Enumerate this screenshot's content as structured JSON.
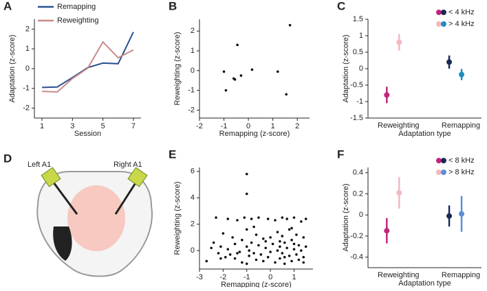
{
  "chart_data": [
    {
      "type": "line",
      "panel": "A",
      "xlabel": "Session",
      "ylabel": "Adaptation (z-score)",
      "x": [
        1,
        2,
        3,
        4,
        5,
        6,
        7
      ],
      "xlim": [
        0.5,
        7.5
      ],
      "xticks": [
        1,
        3,
        5,
        7
      ],
      "ylim": [
        -2.5,
        2.5
      ],
      "yticks": [
        -2,
        -1,
        0,
        1,
        2
      ],
      "legend": "top-left",
      "series": [
        {
          "name": "Remapping",
          "color": "#2b4f8e",
          "values": [
            -0.95,
            -0.93,
            -0.45,
            0.05,
            0.28,
            0.25,
            1.85
          ]
        },
        {
          "name": "Reweighting",
          "color": "#c98a8a",
          "values": [
            -1.15,
            -1.18,
            -0.5,
            0.02,
            1.35,
            0.55,
            0.95
          ]
        }
      ]
    },
    {
      "type": "scatter",
      "panel": "B",
      "xlabel": "Remapping (z-score)",
      "ylabel": "Reweighting (z-score)",
      "xlim": [
        -2,
        2.5
      ],
      "xticks": [
        -2,
        -1,
        0,
        1,
        2
      ],
      "ylim": [
        -2.4,
        2.6
      ],
      "yticks": [
        -2,
        -1,
        0,
        1,
        2
      ],
      "color": "#111111",
      "x": [
        -1,
        -0.92,
        -0.6,
        -0.55,
        -0.45,
        -0.3,
        0.15,
        1.2,
        1.55,
        1.7
      ],
      "y": [
        -0.05,
        -1,
        -0.4,
        -0.45,
        1.3,
        -0.25,
        0.05,
        -0.05,
        -1.2,
        2.3
      ]
    },
    {
      "type": "dot_errorbar",
      "panel": "C",
      "xlabel": "Adaptation type",
      "ylabel": "Adaptation (z-score)",
      "categories": [
        "Reweighting",
        "Remapping"
      ],
      "ylim": [
        -1.5,
        1.5
      ],
      "yticks": [
        -1.5,
        -1,
        -0.5,
        0,
        0.5,
        1,
        1.5
      ],
      "legend": "top-right",
      "series": [
        {
          "name": "< 4 kHz",
          "colors": [
            "#c2247f",
            "#1a2a55"
          ],
          "values": [
            -0.8,
            0.2
          ],
          "errors": [
            0.25,
            0.2
          ]
        },
        {
          "name": "> 4 kHz",
          "colors": [
            "#f2b8c0",
            "#1a8fbf"
          ],
          "values": [
            0.8,
            -0.18
          ],
          "errors": [
            0.25,
            0.17
          ]
        }
      ]
    },
    {
      "type": "scatter",
      "panel": "E",
      "xlabel": "Remapping (z-score)",
      "ylabel": "Reweighting (z-score)",
      "xlim": [
        -3,
        1.8
      ],
      "xticks": [
        -3,
        -2,
        -1,
        0,
        1
      ],
      "ylim": [
        -1.4,
        6.3
      ],
      "yticks": [
        0,
        2,
        4,
        6
      ],
      "color": "#111111",
      "x": [
        -2.7,
        -2.4,
        -2.3,
        -2.2,
        -2.1,
        -2.0,
        -1.9,
        -1.8,
        -1.8,
        -1.7,
        -1.6,
        -1.5,
        -1.5,
        -1.4,
        -1.3,
        -1.2,
        -1.2,
        -1.1,
        -1.0,
        -1.0,
        -1.0,
        -0.9,
        -0.9,
        -0.8,
        -0.8,
        -0.7,
        -0.6,
        -0.6,
        -0.5,
        -0.5,
        -0.4,
        -0.3,
        -0.3,
        -0.2,
        -0.1,
        -0.1,
        0.0,
        0.0,
        0.1,
        0.2,
        0.2,
        0.3,
        0.3,
        0.4,
        0.4,
        0.5,
        0.5,
        0.5,
        0.6,
        0.6,
        0.7,
        0.7,
        0.8,
        0.8,
        0.9,
        0.9,
        1.0,
        1.0,
        1.1,
        1.1,
        1.2,
        1.2,
        1.3,
        1.3,
        1.4,
        1.4,
        1.5,
        1.5,
        -1.0,
        -1.0,
        -2.5,
        -1.4,
        0.4,
        1.0,
        -0.7,
        -2.1,
        0.9,
        1.4,
        -0.2,
        0.6
      ],
      "y": [
        -0.8,
        0.6,
        2.5,
        -0.2,
        0.3,
        1.3,
        -0.5,
        2.4,
        0.1,
        -0.3,
        1.0,
        -0.6,
        0.5,
        2.3,
        -0.1,
        0.8,
        -0.9,
        2.5,
        0.3,
        -1.0,
        1.6,
        0.0,
        -0.4,
        2.4,
        0.6,
        -0.2,
        1.2,
        -0.7,
        0.4,
        2.5,
        -0.3,
        0.9,
        -0.8,
        0.2,
        2.4,
        -0.5,
        1.0,
        -0.1,
        0.5,
        -0.9,
        2.3,
        0.0,
        1.4,
        -0.6,
        0.3,
        2.5,
        -0.2,
        1.1,
        0.6,
        -1.0,
        2.4,
        0.2,
        -0.4,
        1.6,
        0.8,
        -0.8,
        2.5,
        0.1,
        -0.3,
        1.2,
        0.4,
        -0.7,
        2.2,
        0.0,
        1.0,
        -0.5,
        2.4,
        0.3,
        5.8,
        4.3,
        0.2,
        -0.2,
        0.7,
        0.5,
        1.8,
        -0.6,
        1.7,
        -0.9,
        0.7,
        -0.5
      ]
    },
    {
      "type": "dot_errorbar",
      "panel": "F",
      "xlabel": "Adaptation type",
      "ylabel": "Adaptation (z-score)",
      "categories": [
        "Reweighting",
        "Remapping"
      ],
      "ylim": [
        -0.5,
        0.45
      ],
      "yticks": [
        -0.4,
        -0.2,
        0,
        0.2,
        0.4
      ],
      "legend": "top-right",
      "series": [
        {
          "name": "< 8 kHz",
          "colors": [
            "#c2247f",
            "#1a2a55"
          ],
          "values": [
            -0.15,
            -0.01
          ],
          "errors": [
            0.12,
            0.1
          ]
        },
        {
          "name": "> 8 kHz",
          "colors": [
            "#f2b8c0",
            "#5b8fd6"
          ],
          "values": [
            0.21,
            0.01
          ],
          "errors": [
            0.15,
            0.17
          ]
        }
      ]
    }
  ],
  "diagram": {
    "panel": "D",
    "labels": [
      "Left A1",
      "Right A1"
    ]
  }
}
